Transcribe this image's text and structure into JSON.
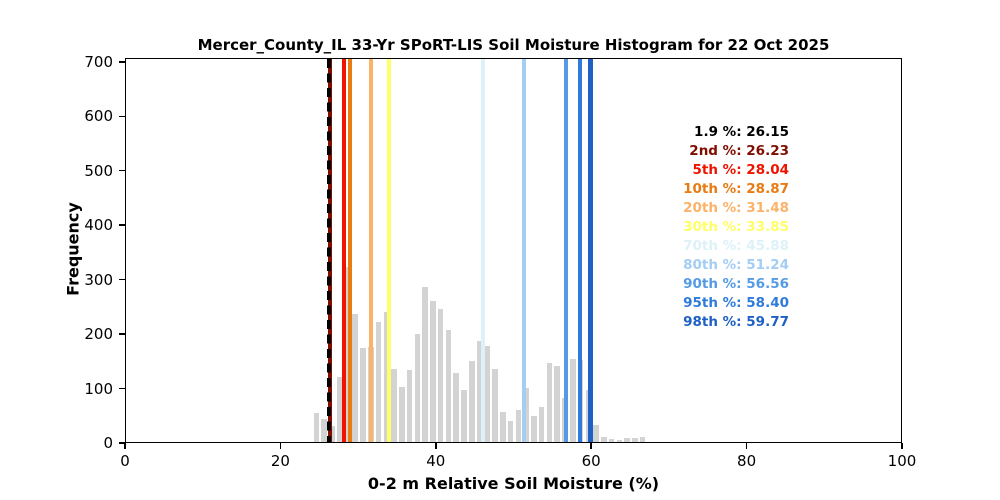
{
  "title": "Mercer_County_IL 33-Yr SPoRT-LIS Soil Moisture Histogram for 22 Oct 2025",
  "axes": {
    "xlabel": "0-2 m Relative Soil Moisture (%)",
    "ylabel": "Frequency"
  },
  "chart_data": {
    "type": "bar",
    "title": "Mercer_County_IL 33-Yr SPoRT-LIS Soil Moisture Histogram for 22 Oct 2025",
    "xlabel": "0-2 m Relative Soil Moisture (%)",
    "ylabel": "Frequency",
    "xlim": [
      0,
      100
    ],
    "ylim": [
      0,
      700
    ],
    "grid": false,
    "legend_position": "upper right",
    "xticks": [
      "0",
      "20",
      "40",
      "60",
      "80",
      "100"
    ],
    "yticks": [
      "0",
      "100",
      "200",
      "300",
      "400",
      "500",
      "600",
      "700"
    ],
    "bar_color": "#d3d3d3",
    "bin_width": 1,
    "bin_centers": [
      24.5,
      25.5,
      26.5,
      27.5,
      28.5,
      29.5,
      30.5,
      31.5,
      32.5,
      33.5,
      34.5,
      35.5,
      36.5,
      37.5,
      38.5,
      39.5,
      40.5,
      41.5,
      42.5,
      43.5,
      44.5,
      45.5,
      46.5,
      47.5,
      48.5,
      49.5,
      50.5,
      51.5,
      52.5,
      53.5,
      54.5,
      55.5,
      56.5,
      57.5,
      58.5,
      59.5,
      60.5,
      61.5,
      62.5,
      63.5,
      64.5,
      65.5,
      66.5
    ],
    "frequencies": [
      53,
      42,
      30,
      120,
      322,
      235,
      172,
      175,
      220,
      239,
      135,
      101,
      133,
      198,
      284,
      259,
      245,
      205,
      126,
      95,
      148,
      185,
      176,
      135,
      56,
      38,
      58,
      100,
      47,
      64,
      145,
      140,
      80,
      153,
      150,
      96,
      31,
      10,
      5,
      3,
      7,
      7,
      10
    ],
    "percentiles": [
      {
        "label": "1.9 %",
        "value": 26.15,
        "value_label": "26.15",
        "color": "#000000",
        "dashed": true,
        "line_width": 3.5
      },
      {
        "label": "2nd %",
        "value": 26.23,
        "value_label": "26.23",
        "color": "#7f0d00",
        "dashed": false,
        "line_width": 3.5
      },
      {
        "label": "5th %",
        "value": 28.04,
        "value_label": "28.04",
        "color": "#ee1400",
        "dashed": false,
        "line_width": 3.5
      },
      {
        "label": "10th %",
        "value": 28.87,
        "value_label": "28.87",
        "color": "#e87b12",
        "dashed": false,
        "line_width": 4
      },
      {
        "label": "20th %",
        "value": 31.48,
        "value_label": "31.48",
        "color": "#fbb269",
        "dashed": false,
        "line_width": 4
      },
      {
        "label": "30th %",
        "value": 33.85,
        "value_label": "33.85",
        "color": "#ffff66",
        "dashed": false,
        "line_width": 4
      },
      {
        "label": "70th %",
        "value": 45.88,
        "value_label": "45.88",
        "color": "#ddf1f8",
        "dashed": false,
        "line_width": 4
      },
      {
        "label": "80th %",
        "value": 51.24,
        "value_label": "51.24",
        "color": "#a3cdf2",
        "dashed": false,
        "line_width": 4
      },
      {
        "label": "90th %",
        "value": 56.56,
        "value_label": "56.56",
        "color": "#549be3",
        "dashed": false,
        "line_width": 4
      },
      {
        "label": "95th %",
        "value": 58.4,
        "value_label": "58.40",
        "color": "#2f7bdb",
        "dashed": false,
        "line_width": 4
      },
      {
        "label": "98th %",
        "value": 59.77,
        "value_label": "59.77",
        "color": "#1f60c4",
        "dashed": false,
        "line_width": 4.5
      }
    ]
  }
}
